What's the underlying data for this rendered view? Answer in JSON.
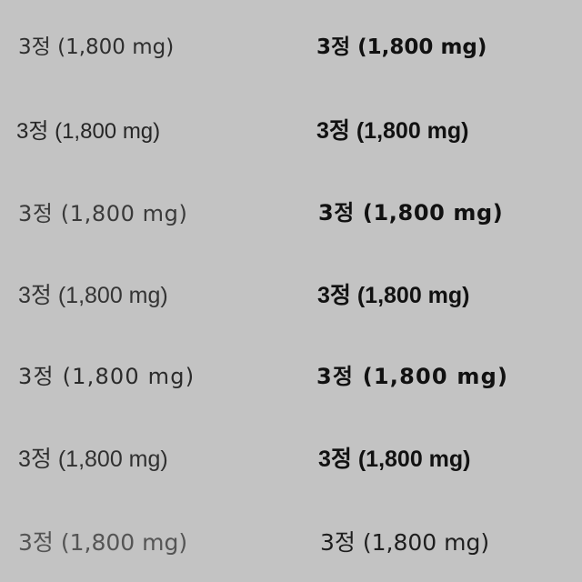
{
  "rows": [
    {
      "left": "3정 (1,800 mg)",
      "right": "3정 (1,800 mg)"
    },
    {
      "left": "3정 (1,800 mg)",
      "right": "3정 (1,800 mg)"
    },
    {
      "left": "3정 (1,800 mg)",
      "right": "3정 (1,800 mg)"
    },
    {
      "left": "3정 (1,800 mg)",
      "right": "3정 (1,800 mg)"
    },
    {
      "left": "3정  (1,800 mg)",
      "right": "3정  (1,800 mg)"
    },
    {
      "left": "3정 (1,800 mg)",
      "right": "3정 (1,800 mg)"
    },
    {
      "left": "3정 (1,800 mg)",
      "right": "3정 (1,800 mg)"
    }
  ],
  "colors": {
    "background": "#c3c3c3",
    "text": "#262626"
  }
}
